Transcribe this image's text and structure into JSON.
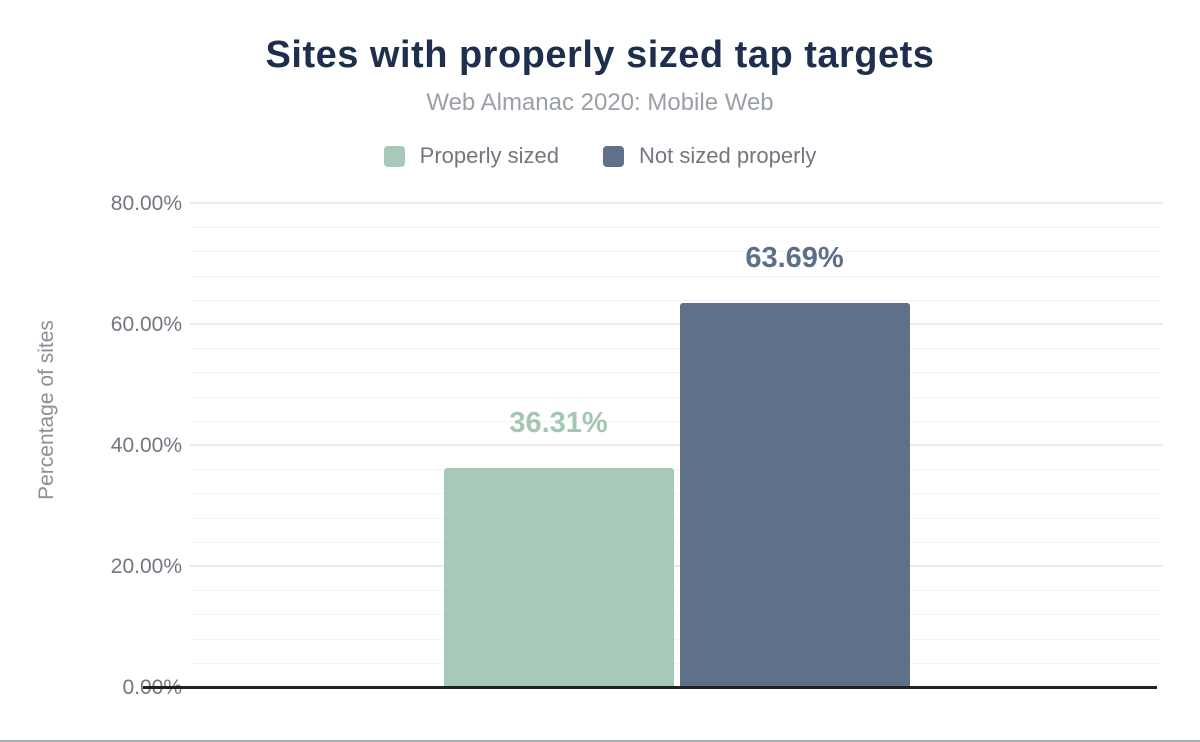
{
  "chart_data": {
    "type": "bar",
    "title": "Sites with properly sized tap targets",
    "subtitle": "Web Almanac 2020: Mobile Web",
    "categories": [
      "Properly sized",
      "Not sized properly"
    ],
    "values": [
      36.31,
      63.69
    ],
    "data_labels": [
      "36.31%",
      "63.69%"
    ],
    "bar_colors": [
      "#a6c9b9",
      "#5f7189"
    ],
    "label_colors": [
      "#a3c6b5",
      "#5d6f88"
    ],
    "xlabel": "",
    "ylabel": "Percentage of sites",
    "ylim": [
      0,
      80
    ],
    "y_ticks": [
      {
        "value": 0,
        "label": "0.00%"
      },
      {
        "value": 20,
        "label": "20.00%"
      },
      {
        "value": 40,
        "label": "40.00%"
      },
      {
        "value": 60,
        "label": "60.00%"
      },
      {
        "value": 80,
        "label": "80.00%"
      }
    ],
    "y_minor_step": 4,
    "grid": true,
    "legend_position": "top"
  },
  "legend": {
    "items": [
      {
        "label": "Properly sized",
        "color": "#a6c9b9"
      },
      {
        "label": "Not sized properly",
        "color": "#5f7189"
      }
    ]
  },
  "colors": {
    "title": "#1e2f4e",
    "subtitle": "#9aa0a6",
    "axis_text": "#72777f",
    "axis_line": "#212121",
    "gridline_major": "#ebebeb",
    "gridline_minor": "#f4f4f4",
    "bottom_rule": "#abaeb3",
    "background": "#ffffff"
  }
}
